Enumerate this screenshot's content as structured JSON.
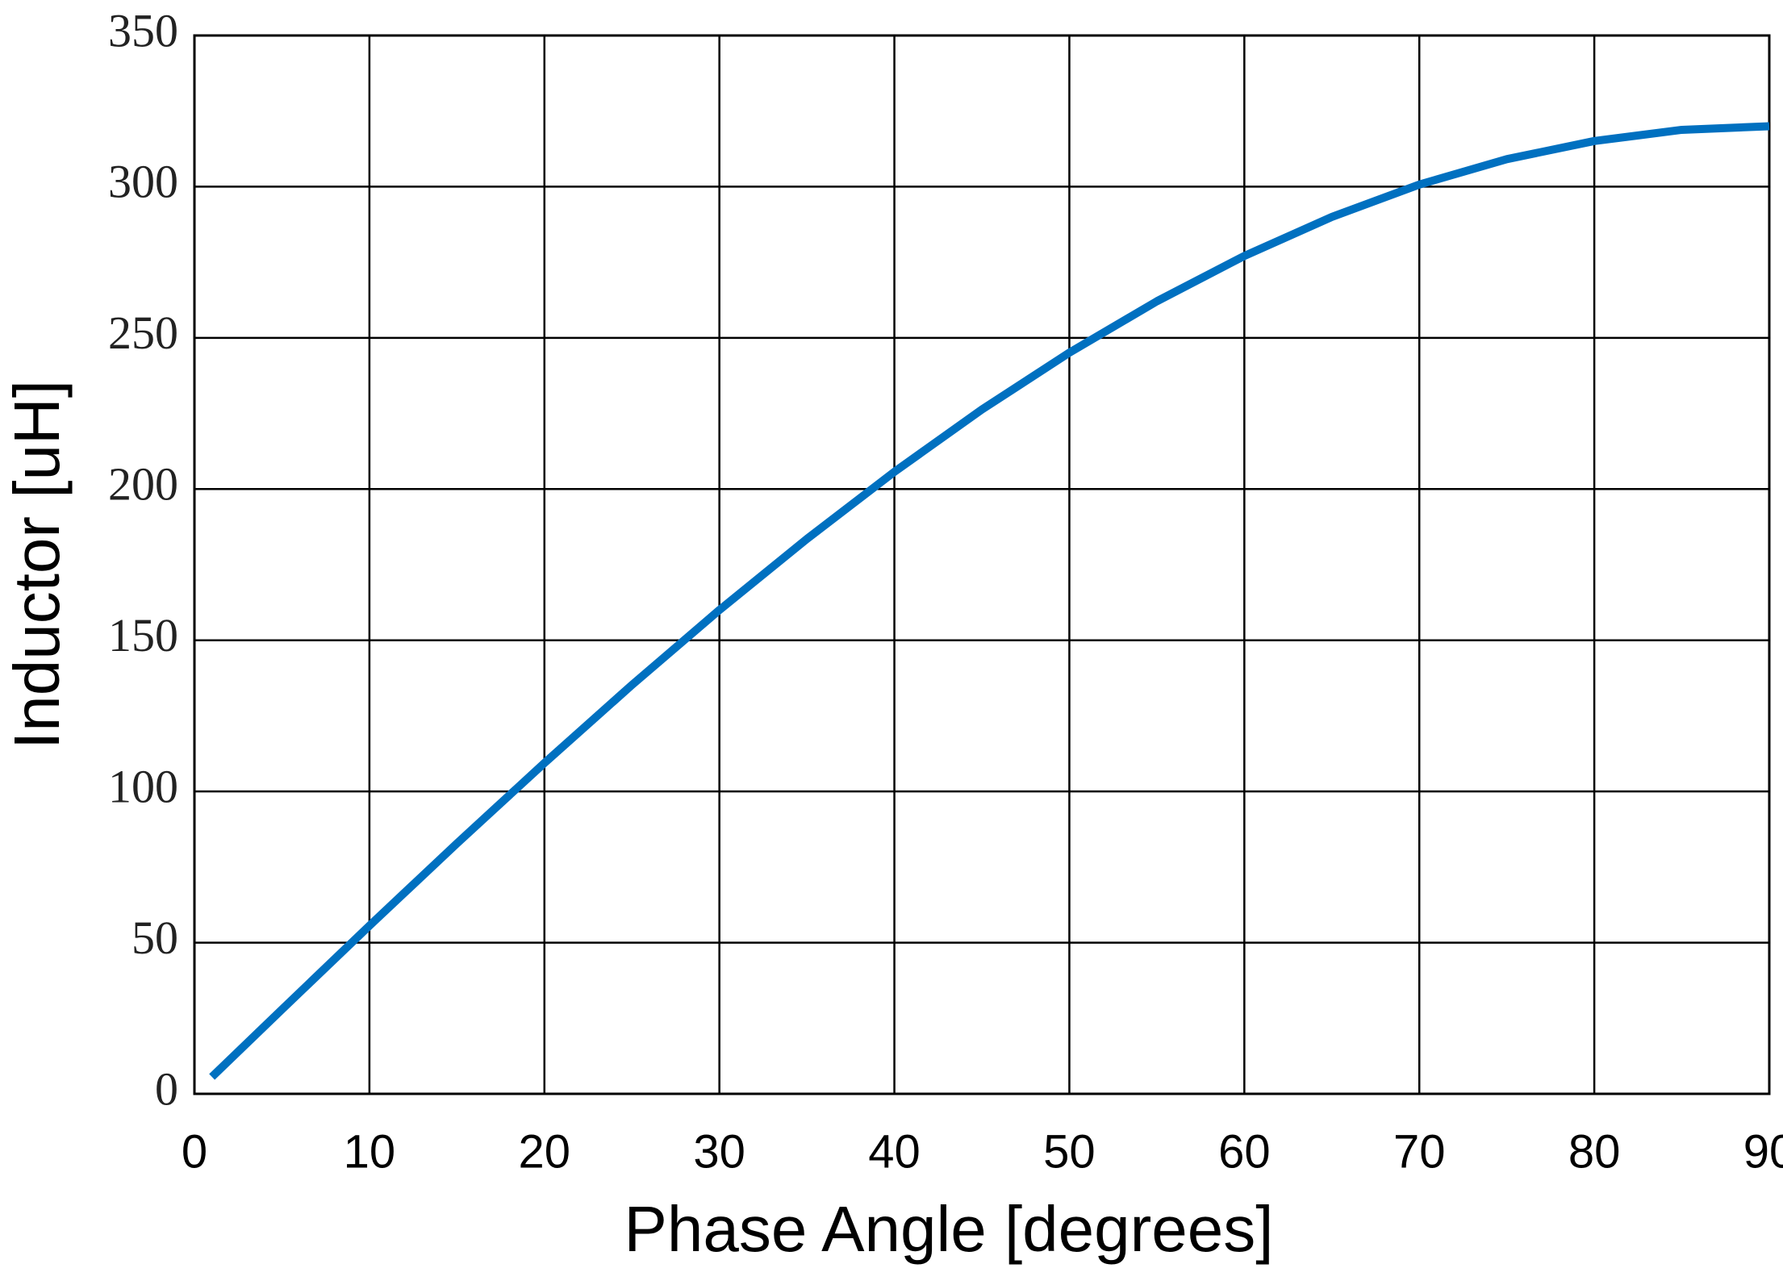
{
  "chart_data": {
    "type": "line",
    "x_label": "Phase Angle [degrees]",
    "y_label": "Inductor [uH]",
    "x": [
      1,
      5,
      10,
      15,
      20,
      25,
      30,
      35,
      40,
      45,
      50,
      55,
      60,
      65,
      70,
      75,
      80,
      85,
      90
    ],
    "series": [
      {
        "name": "Inductor",
        "color": "#0070c0",
        "values": [
          5.6,
          27.9,
          55.6,
          82.8,
          109.4,
          135.2,
          160,
          183.5,
          205.7,
          226.3,
          245.1,
          262.1,
          277.1,
          290,
          300.7,
          309.1,
          315.1,
          318.8,
          320
        ]
      }
    ],
    "xlim": [
      0,
      90
    ],
    "xticks": [
      0,
      10,
      20,
      30,
      40,
      50,
      60,
      70,
      80,
      90
    ],
    "ylim": [
      0,
      350
    ],
    "yticks": [
      0,
      50,
      100,
      150,
      200,
      250,
      300,
      350
    ],
    "grid": true
  }
}
